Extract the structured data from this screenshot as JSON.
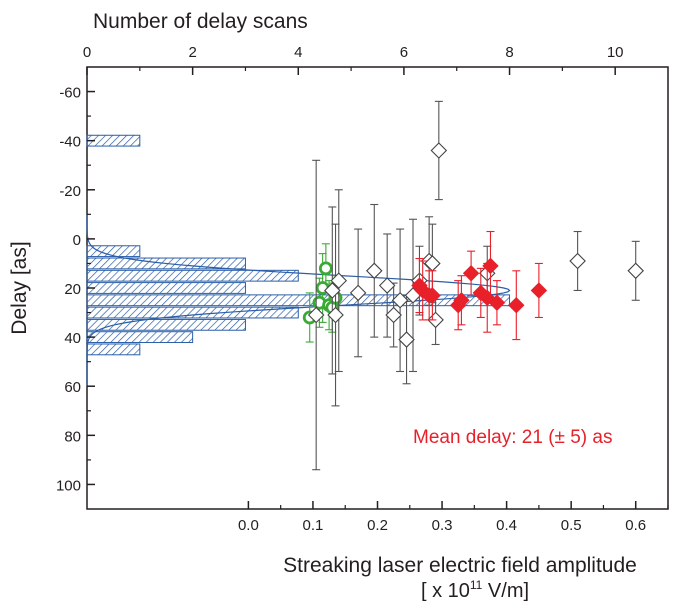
{
  "chart_data": {
    "type": "scatter",
    "top_axis": {
      "label": "Number of delay scans",
      "ticks": [
        0,
        2,
        4,
        6,
        8,
        10
      ],
      "range": [
        0,
        11
      ]
    },
    "left_axis": {
      "label": "Delay [as]",
      "ticks": [
        -60,
        -40,
        -20,
        0,
        20,
        40,
        60,
        80,
        100
      ],
      "range": [
        -70,
        110
      ],
      "reversed": true
    },
    "bottom_axis": {
      "label_line1": "Streaking laser electric field amplitude",
      "label_line2_prefix": "[ x 10",
      "label_line2_sup": "11",
      "label_line2_suffix": " V/m]",
      "ticks": [
        "0.0",
        "0.1",
        "0.2",
        "0.3",
        "0.4",
        "0.5",
        "0.6"
      ],
      "range": [
        -0.25,
        0.65
      ]
    },
    "annotation": {
      "text": "Mean delay: 21 (± 5) as",
      "color": "#e8202a"
    },
    "histogram": {
      "color": "#2b5ea8",
      "bins": [
        {
          "delay": -40,
          "count": 1
        },
        {
          "delay": 5,
          "count": 1
        },
        {
          "delay": 10,
          "count": 3
        },
        {
          "delay": 15,
          "count": 4
        },
        {
          "delay": 20,
          "count": 3
        },
        {
          "delay": 25,
          "count": 8
        },
        {
          "delay": 30,
          "count": 4
        },
        {
          "delay": 35,
          "count": 3
        },
        {
          "delay": 40,
          "count": 2
        },
        {
          "delay": 45,
          "count": 1
        }
      ],
      "gaussian": {
        "mean": 21,
        "sigma": 6,
        "peak": 8
      }
    },
    "series": [
      {
        "marker": "open-circle",
        "color": "#3aaa35",
        "points": [
          {
            "x": 0.095,
            "y": 32,
            "err": 10
          },
          {
            "x": 0.11,
            "y": 26,
            "err": 10
          },
          {
            "x": 0.115,
            "y": 20,
            "err": 14
          },
          {
            "x": 0.12,
            "y": 12,
            "err": 10
          },
          {
            "x": 0.125,
            "y": 27,
            "err": 10
          },
          {
            "x": 0.13,
            "y": 28,
            "err": 10
          },
          {
            "x": 0.135,
            "y": 24,
            "err": 9
          }
        ]
      },
      {
        "marker": "open-diamond",
        "color": "#555555",
        "points": [
          {
            "x": 0.105,
            "y": 31,
            "err": 63
          },
          {
            "x": 0.13,
            "y": 21,
            "err": 34
          },
          {
            "x": 0.135,
            "y": 31,
            "err": 37
          },
          {
            "x": 0.14,
            "y": 17,
            "err": 37
          },
          {
            "x": 0.17,
            "y": 22,
            "err": 26
          },
          {
            "x": 0.195,
            "y": 13,
            "err": 27
          },
          {
            "x": 0.215,
            "y": 19,
            "err": 21
          },
          {
            "x": 0.225,
            "y": 31,
            "err": 13
          },
          {
            "x": 0.235,
            "y": 25,
            "err": 29
          },
          {
            "x": 0.245,
            "y": 41,
            "err": 18
          },
          {
            "x": 0.255,
            "y": 23,
            "err": 31
          },
          {
            "x": 0.265,
            "y": 17,
            "err": 14
          },
          {
            "x": 0.28,
            "y": 9,
            "err": 18
          },
          {
            "x": 0.285,
            "y": 10,
            "err": 16
          },
          {
            "x": 0.29,
            "y": 33,
            "err": 10
          },
          {
            "x": 0.295,
            "y": -36,
            "err": 20
          },
          {
            "x": 0.37,
            "y": 14,
            "err": 11
          },
          {
            "x": 0.51,
            "y": 9,
            "err": 12
          },
          {
            "x": 0.6,
            "y": 13,
            "err": 12
          }
        ]
      },
      {
        "marker": "filled-diamond",
        "color": "#e8202a",
        "points": [
          {
            "x": 0.265,
            "y": 19,
            "err": 11
          },
          {
            "x": 0.27,
            "y": 21,
            "err": 12
          },
          {
            "x": 0.28,
            "y": 23,
            "err": 10
          },
          {
            "x": 0.285,
            "y": 23,
            "err": 10
          },
          {
            "x": 0.325,
            "y": 27,
            "err": 10
          },
          {
            "x": 0.33,
            "y": 25,
            "err": 10
          },
          {
            "x": 0.345,
            "y": 14,
            "err": 9
          },
          {
            "x": 0.36,
            "y": 22,
            "err": 10
          },
          {
            "x": 0.37,
            "y": 24,
            "err": 14
          },
          {
            "x": 0.375,
            "y": 11,
            "err": 14
          },
          {
            "x": 0.385,
            "y": 26,
            "err": 9
          },
          {
            "x": 0.415,
            "y": 27,
            "err": 14
          },
          {
            "x": 0.45,
            "y": 21,
            "err": 11
          }
        ]
      }
    ]
  }
}
